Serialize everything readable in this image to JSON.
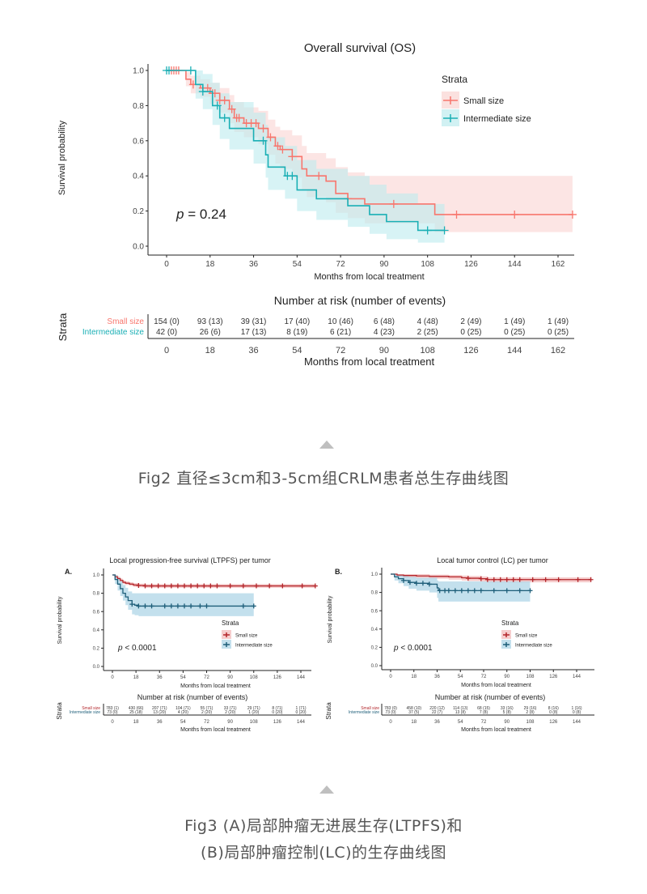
{
  "figures": [
    {
      "caption_lines": [
        "Fig2 直径≤3cm和3-5cm组CRLM患者总生存曲线图"
      ]
    },
    {
      "caption_lines": [
        "Fig3 (A)局部肿瘤无进展生存(LTPFS)和",
        "(B)局部肿瘤控制(LC)的生存曲线图"
      ]
    }
  ],
  "chart_data": [
    {
      "type": "line",
      "subtype": "kaplan-meier step",
      "panel_label": "",
      "title": "Overall survival (OS)",
      "xlabel": "Months from local treatment",
      "ylabel": "Survival probability",
      "xticks": [
        0,
        18,
        36,
        54,
        72,
        90,
        108,
        126,
        144,
        162
      ],
      "yticks": [
        "0.0",
        "0.2",
        "0.4",
        "0.6",
        "0.8",
        "1.0"
      ],
      "xlim": [
        0,
        168
      ],
      "ylim": [
        0,
        1
      ],
      "grid": false,
      "legend": {
        "title": "Strata",
        "placement": "top-right"
      },
      "annotation": {
        "italic": "p",
        "text": " = 0.24"
      },
      "series": [
        {
          "name": "Small size",
          "color": "#F8766D",
          "band": "#FAD4D2",
          "x": [
            0,
            6,
            8,
            10,
            14,
            18,
            22,
            26,
            28,
            32,
            38,
            42,
            45,
            47,
            52,
            56,
            58,
            66,
            70,
            75,
            82,
            111,
            168
          ],
          "y": [
            1,
            1,
            0.95,
            0.92,
            0.9,
            0.87,
            0.83,
            0.78,
            0.73,
            0.7,
            0.67,
            0.62,
            0.57,
            0.55,
            0.51,
            0.44,
            0.4,
            0.37,
            0.3,
            0.27,
            0.24,
            0.18,
            0.18
          ],
          "ci_lower": [
            1,
            1,
            0.91,
            0.87,
            0.85,
            0.81,
            0.76,
            0.7,
            0.65,
            0.62,
            0.58,
            0.52,
            0.47,
            0.44,
            0.39,
            0.32,
            0.28,
            0.25,
            0.19,
            0.16,
            0.13,
            0.08,
            0.08
          ],
          "ci_upper": [
            1,
            1,
            0.99,
            0.97,
            0.95,
            0.93,
            0.9,
            0.86,
            0.82,
            0.79,
            0.77,
            0.72,
            0.68,
            0.66,
            0.63,
            0.57,
            0.53,
            0.5,
            0.45,
            0.42,
            0.4,
            0.4,
            0.4
          ],
          "censored": [
            2,
            3,
            4,
            5,
            11,
            15,
            17,
            19,
            20,
            22,
            24,
            27,
            29,
            30,
            33,
            35,
            37,
            40,
            43,
            46,
            48,
            52,
            63,
            75,
            94,
            120,
            144,
            168
          ]
        },
        {
          "name": "Intermediate size",
          "color": "#1AAFB5",
          "band": "#BDEBEE",
          "x": [
            0,
            9,
            12,
            15,
            19,
            22,
            26,
            36,
            41,
            42,
            49,
            54,
            62,
            75,
            84,
            91,
            104,
            115
          ],
          "y": [
            1,
            1,
            0.92,
            0.88,
            0.8,
            0.73,
            0.67,
            0.6,
            0.52,
            0.45,
            0.4,
            0.32,
            0.27,
            0.23,
            0.18,
            0.14,
            0.09,
            0.09
          ],
          "ci_lower": [
            1,
            1,
            0.84,
            0.78,
            0.69,
            0.61,
            0.55,
            0.47,
            0.39,
            0.32,
            0.27,
            0.2,
            0.15,
            0.11,
            0.07,
            0.04,
            0.02,
            0.02
          ],
          "ci_upper": [
            1,
            1,
            1,
            0.98,
            0.93,
            0.87,
            0.82,
            0.76,
            0.69,
            0.62,
            0.57,
            0.49,
            0.44,
            0.4,
            0.35,
            0.3,
            0.24,
            0.24
          ],
          "censored": [
            0,
            1,
            10,
            15,
            21,
            24,
            40,
            50,
            52,
            108,
            115
          ]
        }
      ],
      "risk_table": {
        "title": "Number at risk (number of events)",
        "strata_label": "Strata",
        "xlabel": "Months from local treatment",
        "rows": [
          {
            "label": "Small size",
            "values": [
              "154 (0)",
              "93 (13)",
              "39 (31)",
              "17 (40)",
              "10 (46)",
              "6 (48)",
              "4 (48)",
              "2 (49)",
              "1 (49)",
              "1 (49)"
            ]
          },
          {
            "label": "Intermediate size",
            "values": [
              "42 (0)",
              "26 (6)",
              "17 (13)",
              "8 (19)",
              "6 (21)",
              "4 (23)",
              "2 (25)",
              "0 (25)",
              "0 (25)",
              "0 (25)"
            ]
          }
        ]
      }
    },
    {
      "type": "line",
      "subtype": "kaplan-meier step",
      "panel_label": "A.",
      "title": "Local progression-free survival (LTPFS) per tumor",
      "xlabel": "Months from local treatment",
      "ylabel": "Survival probability",
      "xticks": [
        0,
        18,
        36,
        54,
        72,
        90,
        108,
        126,
        144
      ],
      "yticks": [
        "0.0",
        "0.2",
        "0.4",
        "0.6",
        "0.8",
        "1.0"
      ],
      "xlim": [
        0,
        158
      ],
      "ylim": [
        0,
        1
      ],
      "grid": false,
      "legend": {
        "title": "Strata",
        "placement": "center-right"
      },
      "annotation": {
        "italic": "p",
        "text": " < 0.0001"
      },
      "series": [
        {
          "name": "Small size",
          "color": "#B3262B",
          "band": "#F2B8B8",
          "x": [
            0,
            2,
            4,
            6,
            8,
            10,
            13,
            16,
            20,
            25,
            155
          ],
          "y": [
            1,
            0.98,
            0.96,
            0.94,
            0.92,
            0.91,
            0.9,
            0.89,
            0.885,
            0.88,
            0.88
          ],
          "ci_lower": [
            1,
            0.96,
            0.94,
            0.92,
            0.9,
            0.89,
            0.88,
            0.87,
            0.865,
            0.86,
            0.86
          ],
          "ci_upper": [
            1,
            1,
            0.98,
            0.96,
            0.94,
            0.93,
            0.92,
            0.91,
            0.905,
            0.9,
            0.9
          ],
          "censored": [
            20,
            25,
            30,
            35,
            40,
            45,
            50,
            55,
            60,
            65,
            70,
            75,
            80,
            90,
            100,
            110,
            120,
            130,
            145,
            155
          ]
        },
        {
          "name": "Intermediate size",
          "color": "#1F5F7A",
          "band": "#A9D3E6",
          "x": [
            0,
            2,
            4,
            6,
            8,
            10,
            12,
            15,
            17,
            20,
            108
          ],
          "y": [
            1,
            0.95,
            0.9,
            0.85,
            0.8,
            0.76,
            0.72,
            0.68,
            0.67,
            0.66,
            0.66
          ],
          "ci_lower": [
            1,
            0.9,
            0.83,
            0.77,
            0.72,
            0.67,
            0.62,
            0.57,
            0.56,
            0.55,
            0.55
          ],
          "ci_upper": [
            1,
            1,
            0.97,
            0.93,
            0.89,
            0.86,
            0.82,
            0.8,
            0.8,
            0.8,
            0.8
          ],
          "censored": [
            15,
            20,
            25,
            30,
            40,
            45,
            50,
            55,
            60,
            67,
            72,
            100,
            108
          ]
        }
      ],
      "risk_table": {
        "title": "Number at risk (number of events)",
        "strata_label": "Strata",
        "xlabel": "Months from local treatment",
        "rows": [
          {
            "label": "Small size",
            "values": [
              "783 (1)",
              "430 (66)",
              "207 (71)",
              "104 (71)",
              "55 (71)",
              "33 (71)",
              "29 (71)",
              "8 (71)",
              "1 (71)"
            ]
          },
          {
            "label": "Intermediate size",
            "values": [
              "73 (0)",
              "25 (18)",
              "13 (20)",
              "4 (20)",
              "2 (20)",
              "2 (20)",
              "1 (20)",
              "0 (20)",
              "0 (20)"
            ]
          }
        ]
      }
    },
    {
      "type": "line",
      "subtype": "kaplan-meier step",
      "panel_label": "B.",
      "title": "Local tumor control (LC) per tumor",
      "xlabel": "Months from local treatment",
      "ylabel": "Survival probability",
      "xticks": [
        0,
        18,
        36,
        54,
        72,
        90,
        108,
        126,
        144
      ],
      "yticks": [
        "0.0",
        "0.2",
        "0.4",
        "0.6",
        "0.8",
        "1.0"
      ],
      "xlim": [
        0,
        158
      ],
      "ylim": [
        0,
        1
      ],
      "grid": false,
      "legend": {
        "title": "Strata",
        "placement": "center-right"
      },
      "annotation": {
        "italic": "p",
        "text": " < 0.0001"
      },
      "series": [
        {
          "name": "Small size",
          "color": "#B3262B",
          "band": "#F2B8B8",
          "x": [
            0,
            5,
            10,
            20,
            30,
            45,
            55,
            60,
            70,
            75,
            155
          ],
          "y": [
            1,
            0.99,
            0.985,
            0.98,
            0.975,
            0.97,
            0.96,
            0.955,
            0.95,
            0.94,
            0.94
          ],
          "ci_lower": [
            1,
            0.97,
            0.96,
            0.955,
            0.95,
            0.94,
            0.93,
            0.925,
            0.92,
            0.91,
            0.91
          ],
          "ci_upper": [
            1,
            1,
            1,
            1,
            0.995,
            0.99,
            0.985,
            0.98,
            0.975,
            0.965,
            0.965
          ],
          "censored": [
            60,
            70,
            75,
            80,
            85,
            90,
            95,
            100,
            110,
            120,
            130,
            145,
            155
          ]
        },
        {
          "name": "Intermediate size",
          "color": "#1F5F7A",
          "band": "#A9D3E6",
          "x": [
            0,
            3,
            6,
            10,
            14,
            20,
            30,
            36,
            37,
            108
          ],
          "y": [
            1,
            0.97,
            0.95,
            0.93,
            0.91,
            0.9,
            0.89,
            0.85,
            0.82,
            0.82
          ],
          "ci_lower": [
            1,
            0.93,
            0.9,
            0.87,
            0.84,
            0.82,
            0.8,
            0.74,
            0.7,
            0.7
          ],
          "ci_upper": [
            1,
            1,
            0.99,
            0.98,
            0.97,
            0.96,
            0.96,
            0.93,
            0.92,
            0.92
          ],
          "censored": [
            10,
            15,
            20,
            25,
            30,
            38,
            42,
            45,
            50,
            55,
            60,
            65,
            70,
            80,
            90,
            100,
            108
          ]
        }
      ],
      "risk_table": {
        "title": "Number at risk (number of events)",
        "strata_label": "Strata",
        "xlabel": "Months from local treatment",
        "rows": [
          {
            "label": "Small size",
            "values": [
              "783 (0)",
              "458 (10)",
              "220 (12)",
              "114 (13)",
              "68 (15)",
              "33 (16)",
              "29 (16)",
              "8 (16)",
              "1 (16)"
            ]
          },
          {
            "label": "Intermediate size",
            "values": [
              "73 (0)",
              "37 (5)",
              "22 (7)",
              "13 (8)",
              "7 (8)",
              "5 (8)",
              "2 (8)",
              "0 (8)",
              "0 (8)"
            ]
          }
        ]
      }
    }
  ]
}
